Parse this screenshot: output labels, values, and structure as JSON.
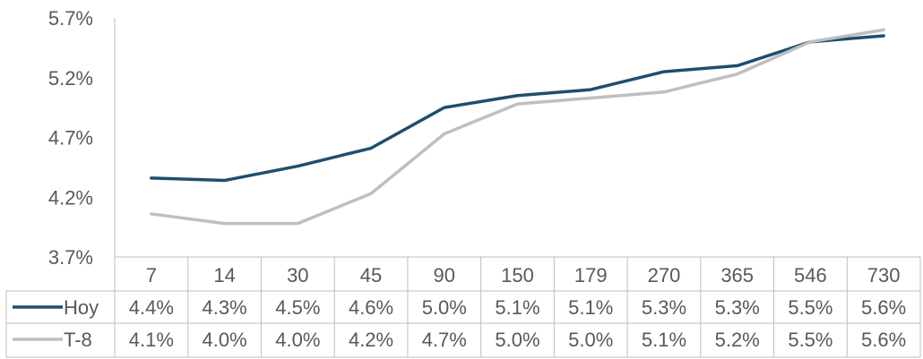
{
  "chart_data": {
    "type": "line",
    "categories": [
      "7",
      "14",
      "30",
      "45",
      "90",
      "150",
      "179",
      "270",
      "365",
      "546",
      "730"
    ],
    "ylim": [
      3.7,
      5.7
    ],
    "yticks": [
      "3.7%",
      "4.2%",
      "4.7%",
      "5.2%",
      "5.7%"
    ],
    "ytick_values": [
      3.7,
      4.2,
      4.7,
      5.2,
      5.7
    ],
    "legend_placement": "data-table",
    "series": [
      {
        "name": "Hoy",
        "color": "#1f4e6e",
        "values": [
          4.36,
          4.34,
          4.46,
          4.61,
          4.95,
          5.05,
          5.1,
          5.25,
          5.3,
          5.5,
          5.55
        ],
        "labels": [
          "4.4%",
          "4.3%",
          "4.5%",
          "4.6%",
          "5.0%",
          "5.1%",
          "5.1%",
          "5.3%",
          "5.3%",
          "5.5%",
          "5.6%"
        ]
      },
      {
        "name": "T-8",
        "color": "#bfbfbf",
        "values": [
          4.06,
          3.98,
          3.98,
          4.23,
          4.73,
          4.98,
          5.03,
          5.08,
          5.23,
          5.5,
          5.6
        ],
        "labels": [
          "4.1%",
          "4.0%",
          "4.0%",
          "4.2%",
          "4.7%",
          "5.0%",
          "5.0%",
          "5.1%",
          "5.2%",
          "5.5%",
          "5.6%"
        ]
      }
    ]
  }
}
